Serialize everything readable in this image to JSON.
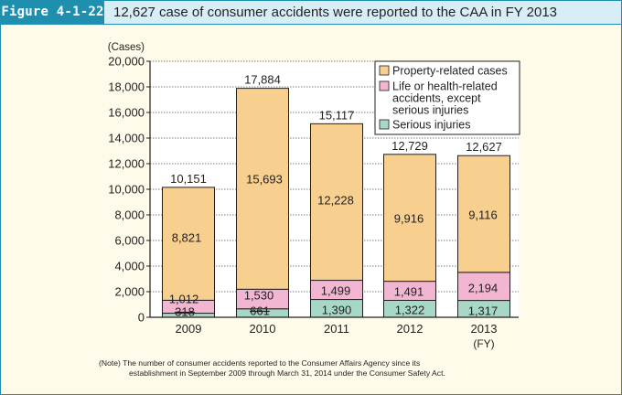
{
  "header": {
    "figure_label": "Figure 4-1-22",
    "title": "12,627 case of consumer accidents were reported to the CAA in FY 2013"
  },
  "note": {
    "line1": "(Note) The number of consumer accidents reported to the Consumer Affairs Agency since its",
    "line2": "establishment in September 2009 through March 31, 2014 under the Consumer Safety Act."
  },
  "chart_data": {
    "type": "bar",
    "stacked": true,
    "categories": [
      "2009",
      "2010",
      "2011",
      "2012",
      "2013"
    ],
    "x_unit_label": "(FY)",
    "y_unit_label": "(Cases)",
    "ylim": [
      0,
      20000
    ],
    "y_ticks": [
      0,
      2000,
      4000,
      6000,
      8000,
      10000,
      12000,
      14000,
      16000,
      18000,
      20000
    ],
    "y_tick_labels": [
      "0",
      "2,000",
      "4,000",
      "6,000",
      "8,000",
      "10,000",
      "12,000",
      "14,000",
      "16,000",
      "18,000",
      "20,000"
    ],
    "grid": true,
    "legend_position": "top-right",
    "series": [
      {
        "name": "Serious injuries",
        "color": "#a7d7c5",
        "values": [
          318,
          661,
          1390,
          1322,
          1317
        ],
        "labels": [
          "318",
          "661",
          "1,390",
          "1,322",
          "1,317"
        ]
      },
      {
        "name": "Life or health-related accidents, except serious injuries",
        "legend_lines": [
          "Life or health-related",
          "accidents, except",
          "serious injuries"
        ],
        "color": "#f2b6d2",
        "values": [
          1012,
          1530,
          1499,
          1491,
          2194
        ],
        "labels": [
          "1,012",
          "1,530",
          "1,499",
          "1,491",
          "2,194"
        ]
      },
      {
        "name": "Property-related cases",
        "color": "#f7cf8e",
        "values": [
          8821,
          15693,
          12228,
          9916,
          9116
        ],
        "labels": [
          "8,821",
          "15,693",
          "12,228",
          "9,916",
          "9,116"
        ]
      }
    ],
    "totals": [
      10151,
      17884,
      15117,
      12729,
      12627
    ],
    "total_labels": [
      "10,151",
      "17,884",
      "15,117",
      "12,729",
      "12,627"
    ]
  }
}
